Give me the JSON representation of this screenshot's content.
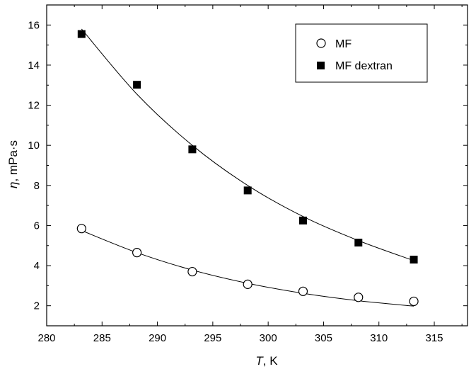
{
  "chart_data": {
    "type": "scatter",
    "xlabel_symbol": "T",
    "xlabel_unit": ", K",
    "ylabel_symbol": "η",
    "ylabel_unit": ", mPa·s",
    "xlim": [
      280,
      318
    ],
    "ylim": [
      1,
      17
    ],
    "xticks": [
      280,
      285,
      290,
      295,
      300,
      305,
      310,
      315
    ],
    "yticks": [
      2,
      4,
      6,
      8,
      10,
      12,
      14,
      16
    ],
    "legend_position": "top-right",
    "grid": false,
    "series": [
      {
        "name": "MF",
        "marker": "open-circle",
        "x": [
          283.15,
          288.15,
          293.15,
          298.15,
          303.15,
          308.15,
          313.15
        ],
        "y": [
          5.85,
          4.65,
          3.7,
          3.07,
          2.72,
          2.42,
          2.22
        ],
        "fit": {
          "x": [
            283.15,
            288.15,
            293.15,
            298.15,
            303.15,
            308.15,
            313.15
          ],
          "y": [
            5.75,
            4.65,
            3.78,
            3.12,
            2.62,
            2.25,
            1.98
          ]
        }
      },
      {
        "name": "MF dextran",
        "marker": "filled-square",
        "x": [
          283.15,
          288.15,
          293.15,
          298.15,
          303.15,
          308.15,
          313.15
        ],
        "y": [
          15.55,
          13.02,
          9.8,
          7.75,
          6.25,
          5.15,
          4.3
        ],
        "fit": {
          "x": [
            283.15,
            288.15,
            293.15,
            298.15,
            303.15,
            308.15,
            313.15
          ],
          "y": [
            15.8,
            12.55,
            10.0,
            8.0,
            6.45,
            5.25,
            4.25
          ]
        }
      }
    ]
  }
}
